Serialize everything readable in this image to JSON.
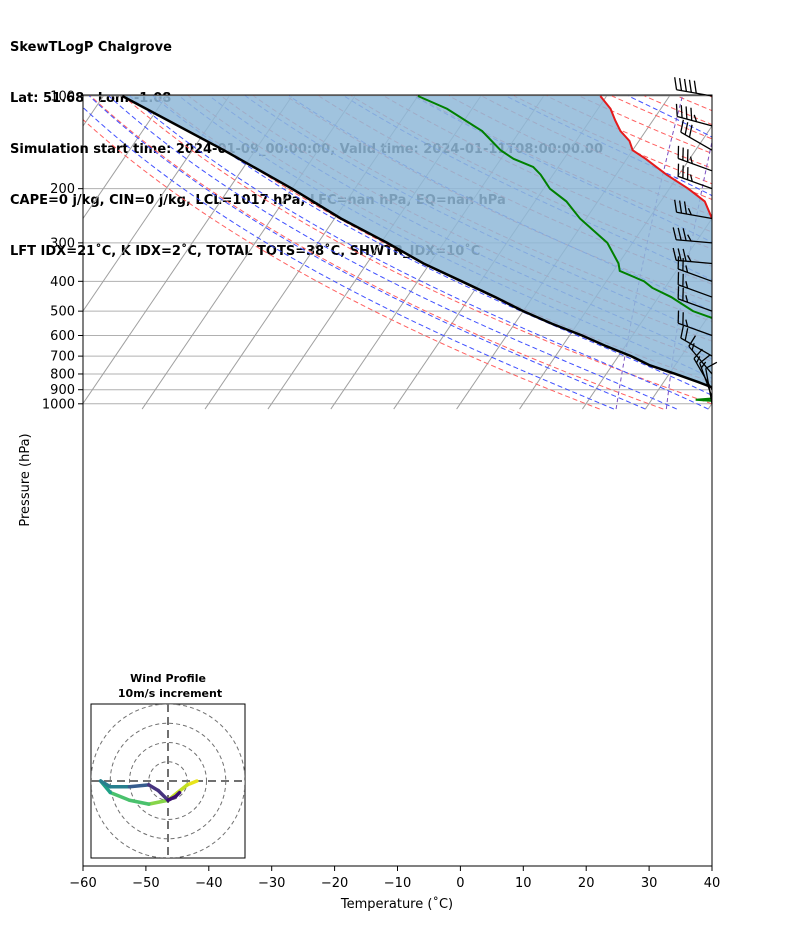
{
  "header": {
    "line1": "SkewTLogP Chalgrove",
    "line2": "Lat: 51.68   Lon: -1.08",
    "line3": "Simulation start time: 2024-01-09_00:00:00, Valid time: 2024-01-11T08:00:00.00",
    "line4": "CAPE=0 j/kg, CIN=0 j/kg, LCL=1017 hPa, LFC=nan hPa, EQ=nan hPa",
    "line5": "LFT IDX=21˚C, K IDX=2˚C, TOTAL TOTS=38˚C, SHWTR_IDX=10˚C"
  },
  "colors": {
    "temperature": "#e41a1c",
    "dewpoint": "#008000",
    "parcel": "#000000",
    "cape_fill": "#8fb9d8",
    "dry_adiabat": "#ff6060",
    "moist_adiabat": "#4050ff",
    "mixing_ratio": "#7a4fc0",
    "isotherm": "#a0a0a0"
  },
  "chart_data": {
    "type": "line",
    "xlabel": "Temperature (˚C)",
    "ylabel": "Pressure (hPa)",
    "xlim": [
      -60,
      40
    ],
    "ylim": [
      1040,
      100
    ],
    "yscale": "log",
    "skew": true,
    "grid": true,
    "x_ticks": [
      -60,
      -50,
      -40,
      -30,
      -20,
      -10,
      0,
      10,
      20,
      30,
      40
    ],
    "x_tick_labels": [
      "−60",
      "−50",
      "−40",
      "−30",
      "−20",
      "−10",
      "0",
      "10",
      "20",
      "30",
      "40"
    ],
    "y_ticks": [
      1000,
      900,
      800,
      700,
      600,
      500,
      400,
      300,
      200,
      100
    ],
    "y_tick_labels": [
      "1000",
      "900",
      "800",
      "700",
      "600",
      "500",
      "400",
      "300",
      "200",
      "100"
    ],
    "series": [
      {
        "name": "temperature",
        "points": [
          [
            1015,
            -2
          ],
          [
            1000,
            0.5
          ],
          [
            990,
            1
          ],
          [
            960,
            1.5
          ],
          [
            930,
            3
          ],
          [
            900,
            4.5
          ],
          [
            850,
            5
          ],
          [
            800,
            4.5
          ],
          [
            700,
            2.5
          ],
          [
            600,
            -1
          ],
          [
            500,
            -5.5
          ],
          [
            450,
            -9
          ],
          [
            400,
            -13
          ],
          [
            350,
            -18
          ],
          [
            300,
            -24
          ],
          [
            250,
            -30
          ],
          [
            220,
            -33
          ],
          [
            200,
            -37
          ],
          [
            180,
            -42
          ],
          [
            160,
            -47
          ],
          [
            150,
            -50
          ],
          [
            140,
            -51.5
          ],
          [
            130,
            -54
          ],
          [
            120,
            -56
          ],
          [
            110,
            -58
          ],
          [
            100,
            -61
          ]
        ]
      },
      {
        "name": "dewpoint",
        "points": [
          [
            1015,
            -2
          ],
          [
            1005,
            -1.5
          ],
          [
            995,
            -5
          ],
          [
            970,
            -13
          ],
          [
            955,
            -9
          ],
          [
            930,
            -6.5
          ],
          [
            900,
            -4.5
          ],
          [
            870,
            -7
          ],
          [
            850,
            -6.5
          ],
          [
            800,
            -3
          ],
          [
            700,
            -4
          ],
          [
            650,
            -8
          ],
          [
            600,
            -11
          ],
          [
            550,
            -16
          ],
          [
            500,
            -23
          ],
          [
            450,
            -28
          ],
          [
            420,
            -32
          ],
          [
            400,
            -34
          ],
          [
            370,
            -39
          ],
          [
            350,
            -40
          ],
          [
            300,
            -44
          ],
          [
            250,
            -51
          ],
          [
            220,
            -55
          ],
          [
            200,
            -59
          ],
          [
            180,
            -62
          ],
          [
            170,
            -64
          ],
          [
            160,
            -68
          ],
          [
            150,
            -71
          ],
          [
            130,
            -76
          ],
          [
            110,
            -84
          ],
          [
            100,
            -90
          ]
        ]
      },
      {
        "name": "parcel",
        "points": [
          [
            1015,
            -2
          ],
          [
            950,
            -6.5
          ],
          [
            900,
            -10.5
          ],
          [
            850,
            -14.5
          ],
          [
            800,
            -19
          ],
          [
            750,
            -24
          ],
          [
            700,
            -28
          ],
          [
            650,
            -33
          ],
          [
            600,
            -38
          ],
          [
            550,
            -44
          ],
          [
            500,
            -50
          ],
          [
            450,
            -56
          ],
          [
            400,
            -63
          ],
          [
            350,
            -71
          ],
          [
            300,
            -79
          ],
          [
            250,
            -89
          ],
          [
            200,
            -100
          ],
          [
            150,
            -115
          ],
          [
            100,
            -137
          ]
        ]
      }
    ],
    "wind_barbs": [
      {
        "p": 100,
        "speed_kt": 50,
        "dir_deg": 280
      },
      {
        "p": 125,
        "speed_kt": 45,
        "dir_deg": 285
      },
      {
        "p": 150,
        "speed_kt": 30,
        "dir_deg": 300
      },
      {
        "p": 175,
        "speed_kt": 35,
        "dir_deg": 290
      },
      {
        "p": 200,
        "speed_kt": 35,
        "dir_deg": 290
      },
      {
        "p": 250,
        "speed_kt": 35,
        "dir_deg": 280
      },
      {
        "p": 300,
        "speed_kt": 35,
        "dir_deg": 275
      },
      {
        "p": 350,
        "speed_kt": 35,
        "dir_deg": 275
      },
      {
        "p": 400,
        "speed_kt": 25,
        "dir_deg": 290
      },
      {
        "p": 450,
        "speed_kt": 25,
        "dir_deg": 290
      },
      {
        "p": 500,
        "speed_kt": 25,
        "dir_deg": 290
      },
      {
        "p": 600,
        "speed_kt": 25,
        "dir_deg": 290
      },
      {
        "p": 700,
        "speed_kt": 20,
        "dir_deg": 300
      },
      {
        "p": 800,
        "speed_kt": 15,
        "dir_deg": 320
      },
      {
        "p": 900,
        "speed_kt": 15,
        "dir_deg": 330
      },
      {
        "p": 950,
        "speed_kt": 15,
        "dir_deg": 340
      },
      {
        "p": 1000,
        "speed_kt": 10,
        "dir_deg": 350
      }
    ],
    "hodograph": {
      "title_line1": "Wind Profile",
      "title_line2": "10m/s increment",
      "ring_step": 10,
      "range": [
        -40,
        40
      ],
      "points": [
        [
          15,
          0
        ],
        [
          10,
          -2
        ],
        [
          5,
          -6
        ],
        [
          0,
          -10
        ],
        [
          -10,
          -12
        ],
        [
          -20,
          -10
        ],
        [
          -30,
          -6
        ],
        [
          -35,
          0
        ],
        [
          -30,
          -3
        ],
        [
          -20,
          -3
        ],
        [
          -10,
          -2
        ],
        [
          -5,
          -5
        ],
        [
          0,
          -10
        ],
        [
          4,
          -8
        ],
        [
          6,
          -6
        ]
      ]
    }
  }
}
